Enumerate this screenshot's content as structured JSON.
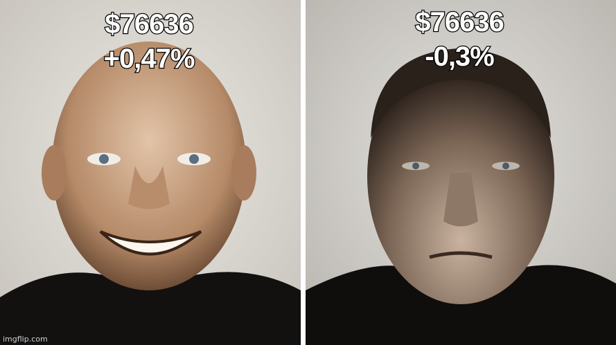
{
  "panels": [
    {
      "lines": [
        "$76636",
        "+0,47%"
      ]
    },
    {
      "lines": [
        "$76636",
        "-0,3%"
      ]
    }
  ],
  "watermark": "imgflip.com"
}
